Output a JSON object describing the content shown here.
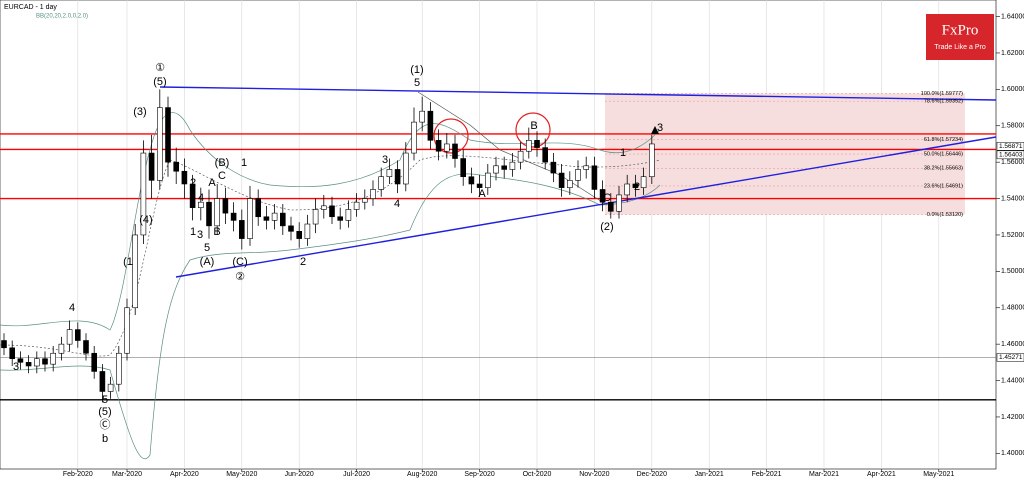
{
  "chart_data": {
    "type": "candlestick",
    "title": "EURCAD - 1 day",
    "subtitle": "BB(20,20,2.0,0,2.0)",
    "logo": "FxPro",
    "tagline": "Trade Like a Pro",
    "categories": [
      null,
      null,
      null,
      null,
      null,
      null,
      null,
      null,
      null,
      "Feb-2020",
      null,
      null,
      null,
      null,
      null,
      "Mar-2020",
      null,
      null,
      null,
      null,
      null,
      null,
      "Apr-2020",
      null,
      null,
      null,
      null,
      null,
      null,
      "May-2020",
      null,
      null,
      null,
      null,
      null,
      null,
      "Jun-2020",
      null,
      null,
      null,
      null,
      null,
      null,
      "Jul-2020",
      null,
      null,
      null,
      null,
      null,
      null,
      null,
      "Aug-2020",
      null,
      null,
      null,
      null,
      null,
      null,
      "Sep-2020",
      null,
      null,
      null,
      null,
      null,
      null,
      "Oct-2020",
      null,
      null,
      null,
      null,
      null,
      null,
      "Nov-2020",
      null,
      null,
      null,
      null,
      null,
      null,
      "Dec-2020",
      null,
      null,
      null,
      null,
      null,
      null,
      "Jan-2021",
      null,
      null,
      null,
      null,
      null,
      null,
      "Feb-2021",
      null,
      null,
      null,
      null,
      null,
      null,
      "Mar-2021",
      null,
      null,
      null,
      null,
      null,
      null,
      "Apr-2021",
      null,
      null,
      null,
      null,
      null,
      null,
      "May-2021",
      null,
      null,
      null,
      null,
      null,
      null
    ],
    "open": [
      1.462,
      1.458,
      1.452,
      1.45,
      1.448,
      1.452,
      1.449,
      1.455,
      1.46,
      1.468,
      1.462,
      1.455,
      1.445,
      1.434,
      1.438,
      1.455,
      1.48,
      1.52,
      1.565,
      1.55,
      1.59,
      1.56,
      1.555,
      1.548,
      1.535,
      1.538,
      1.525,
      1.54,
      1.532,
      1.528,
      1.518,
      1.54,
      1.53,
      1.528,
      1.532,
      1.525,
      1.522,
      1.518,
      1.526,
      1.534,
      1.536,
      1.53,
      1.528,
      1.534,
      1.538,
      1.54,
      1.545,
      1.552,
      1.556,
      1.548,
      1.565,
      1.582,
      1.588,
      1.572,
      1.566,
      1.57,
      1.562,
      1.552,
      1.548,
      1.546,
      1.554,
      1.558,
      1.556,
      1.56,
      1.566,
      1.572,
      1.568,
      1.56,
      1.554,
      1.546,
      1.55,
      1.556,
      1.558,
      1.545,
      1.538,
      1.533,
      1.542,
      1.548,
      1.546,
      1.552,
      null,
      null,
      null,
      null,
      null,
      null,
      null,
      null,
      null,
      null,
      null,
      null,
      null,
      null,
      null,
      null,
      null,
      null,
      null,
      null,
      null,
      null,
      null,
      null,
      null,
      null,
      null,
      null,
      null,
      null,
      null,
      null,
      null,
      null,
      null,
      null,
      null,
      null,
      null,
      null,
      null
    ],
    "high": [
      1.466,
      1.462,
      1.456,
      1.454,
      1.456,
      1.456,
      1.459,
      1.464,
      1.473,
      1.472,
      1.466,
      1.459,
      1.449,
      1.442,
      1.459,
      1.485,
      1.526,
      1.572,
      1.575,
      1.6,
      1.596,
      1.568,
      1.562,
      1.553,
      1.546,
      1.545,
      1.548,
      1.546,
      1.538,
      1.534,
      1.547,
      1.545,
      1.536,
      1.537,
      1.537,
      1.53,
      1.527,
      1.531,
      1.54,
      1.542,
      1.541,
      1.535,
      1.539,
      1.543,
      1.545,
      1.55,
      1.557,
      1.562,
      1.561,
      1.571,
      1.59,
      1.596,
      1.593,
      1.578,
      1.576,
      1.575,
      1.567,
      1.557,
      1.553,
      1.559,
      1.563,
      1.563,
      1.565,
      1.571,
      1.579,
      1.577,
      1.573,
      1.565,
      1.559,
      1.555,
      1.561,
      1.563,
      1.563,
      1.55,
      1.543,
      1.547,
      1.553,
      1.553,
      1.557,
      1.575,
      null,
      null,
      null,
      null,
      null,
      null,
      null,
      null,
      null,
      null,
      null,
      null,
      null,
      null,
      null,
      null,
      null,
      null,
      null,
      null,
      null,
      null,
      null,
      null,
      null,
      null,
      null,
      null,
      null,
      null,
      null,
      null,
      null,
      null,
      null,
      null,
      null,
      null,
      null,
      null,
      null
    ],
    "low": [
      1.454,
      1.448,
      1.446,
      1.444,
      1.444,
      1.445,
      1.445,
      1.451,
      1.456,
      1.458,
      1.451,
      1.441,
      1.428,
      1.43,
      1.434,
      1.451,
      1.476,
      1.515,
      1.54,
      1.545,
      1.552,
      1.548,
      1.54,
      1.528,
      1.528,
      1.518,
      1.52,
      1.526,
      1.522,
      1.512,
      1.514,
      1.525,
      1.523,
      1.523,
      1.52,
      1.517,
      1.513,
      1.514,
      1.521,
      1.529,
      1.526,
      1.523,
      1.524,
      1.53,
      1.534,
      1.536,
      1.541,
      1.548,
      1.543,
      1.544,
      1.561,
      1.577,
      1.567,
      1.561,
      1.562,
      1.557,
      1.547,
      1.543,
      1.541,
      1.542,
      1.55,
      1.551,
      1.552,
      1.556,
      1.562,
      1.563,
      1.556,
      1.549,
      1.541,
      1.542,
      1.546,
      1.551,
      1.54,
      1.533,
      1.529,
      1.529,
      1.538,
      1.541,
      1.542,
      1.548,
      null,
      null,
      null,
      null,
      null,
      null,
      null,
      null,
      null,
      null,
      null,
      null,
      null,
      null,
      null,
      null,
      null,
      null,
      null,
      null,
      null,
      null,
      null,
      null,
      null,
      null,
      null,
      null,
      null,
      null,
      null,
      null,
      null,
      null,
      null,
      null,
      null,
      null,
      null,
      null,
      null
    ],
    "close": [
      1.458,
      1.452,
      1.45,
      1.448,
      1.452,
      1.449,
      1.455,
      1.46,
      1.468,
      1.462,
      1.455,
      1.445,
      1.434,
      1.438,
      1.455,
      1.48,
      1.52,
      1.565,
      1.55,
      1.59,
      1.56,
      1.555,
      1.548,
      1.535,
      1.538,
      1.525,
      1.54,
      1.532,
      1.528,
      1.518,
      1.54,
      1.53,
      1.528,
      1.532,
      1.525,
      1.522,
      1.518,
      1.526,
      1.534,
      1.536,
      1.53,
      1.528,
      1.534,
      1.538,
      1.54,
      1.545,
      1.552,
      1.556,
      1.548,
      1.565,
      1.582,
      1.588,
      1.572,
      1.566,
      1.57,
      1.562,
      1.552,
      1.548,
      1.546,
      1.554,
      1.558,
      1.556,
      1.56,
      1.566,
      1.572,
      1.568,
      1.56,
      1.554,
      1.546,
      1.55,
      1.556,
      1.558,
      1.545,
      1.538,
      1.533,
      1.542,
      1.548,
      1.546,
      1.552,
      1.57,
      null,
      null,
      null,
      null,
      null,
      null,
      null,
      null,
      null,
      null,
      null,
      null,
      null,
      null,
      null,
      null,
      null,
      null,
      null,
      null,
      null,
      null,
      null,
      null,
      null,
      null,
      null,
      null,
      null,
      null,
      null,
      null,
      null,
      null,
      null,
      null,
      null,
      null,
      null,
      null,
      null
    ],
    "ylim": [
      1.3914,
      1.6491
    ],
    "yticks": [
      {
        "value": 1.64,
        "label": "1.64000"
      },
      {
        "value": 1.62,
        "label": "1.62000"
      },
      {
        "value": 1.6,
        "label": "1.60000"
      },
      {
        "value": 1.58,
        "label": "1.58000"
      },
      {
        "value": 1.56,
        "label": "1.56000"
      },
      {
        "value": 1.54,
        "label": "1.54000"
      },
      {
        "value": 1.52,
        "label": "1.52000"
      },
      {
        "value": 1.5,
        "label": "1.50000"
      },
      {
        "value": 1.48,
        "label": "1.48000"
      },
      {
        "value": 1.46,
        "label": "1.46000"
      },
      {
        "value": 1.44,
        "label": "1.44000"
      },
      {
        "value": 1.42,
        "label": "1.42000"
      },
      {
        "value": 1.4,
        "label": "1.40000"
      }
    ],
    "price_labels": [
      1.56871,
      1.56403,
      1.45271
    ],
    "hlines": [
      {
        "value": 1.5755,
        "color": "#ff0000"
      },
      {
        "value": 1.567,
        "color": "#ff0000"
      },
      {
        "value": 1.54,
        "color": "#ff0000"
      },
      {
        "value": 1.4527,
        "color": "#808080"
      },
      {
        "value": 1.4294,
        "color": "#000000"
      }
    ],
    "fib_levels": [
      {
        "value": 1.59777,
        "label": "100.0%(1.59777)"
      },
      {
        "value": 1.59352,
        "label": "78.6%(1.59352)"
      },
      {
        "value": 1.57234,
        "label": "61.8%(1.57234)"
      },
      {
        "value": 1.56446,
        "label": "50.0%(1.56446)"
      },
      {
        "value": 1.55663,
        "label": "38.2%(1.55663)"
      },
      {
        "value": 1.54691,
        "label": "23.6%(1.54691)"
      },
      {
        "value": 1.5312,
        "label": "0.0%(1.53120)"
      }
    ],
    "annotations": [
      "3",
      "4",
      "5",
      "(5)",
      "Ⓒ",
      "b",
      "(1",
      "(3)",
      "(4)",
      "①",
      "(5)",
      "2",
      "4",
      "1",
      "3",
      "5",
      "A",
      "B",
      "(A)",
      "(B)",
      "C",
      "1",
      "(C)",
      "②",
      "2",
      "4",
      "3",
      "(1)",
      "5",
      "A",
      "B",
      "C",
      "(2)",
      "1",
      "2",
      "3"
    ],
    "vertical_grid": true
  }
}
